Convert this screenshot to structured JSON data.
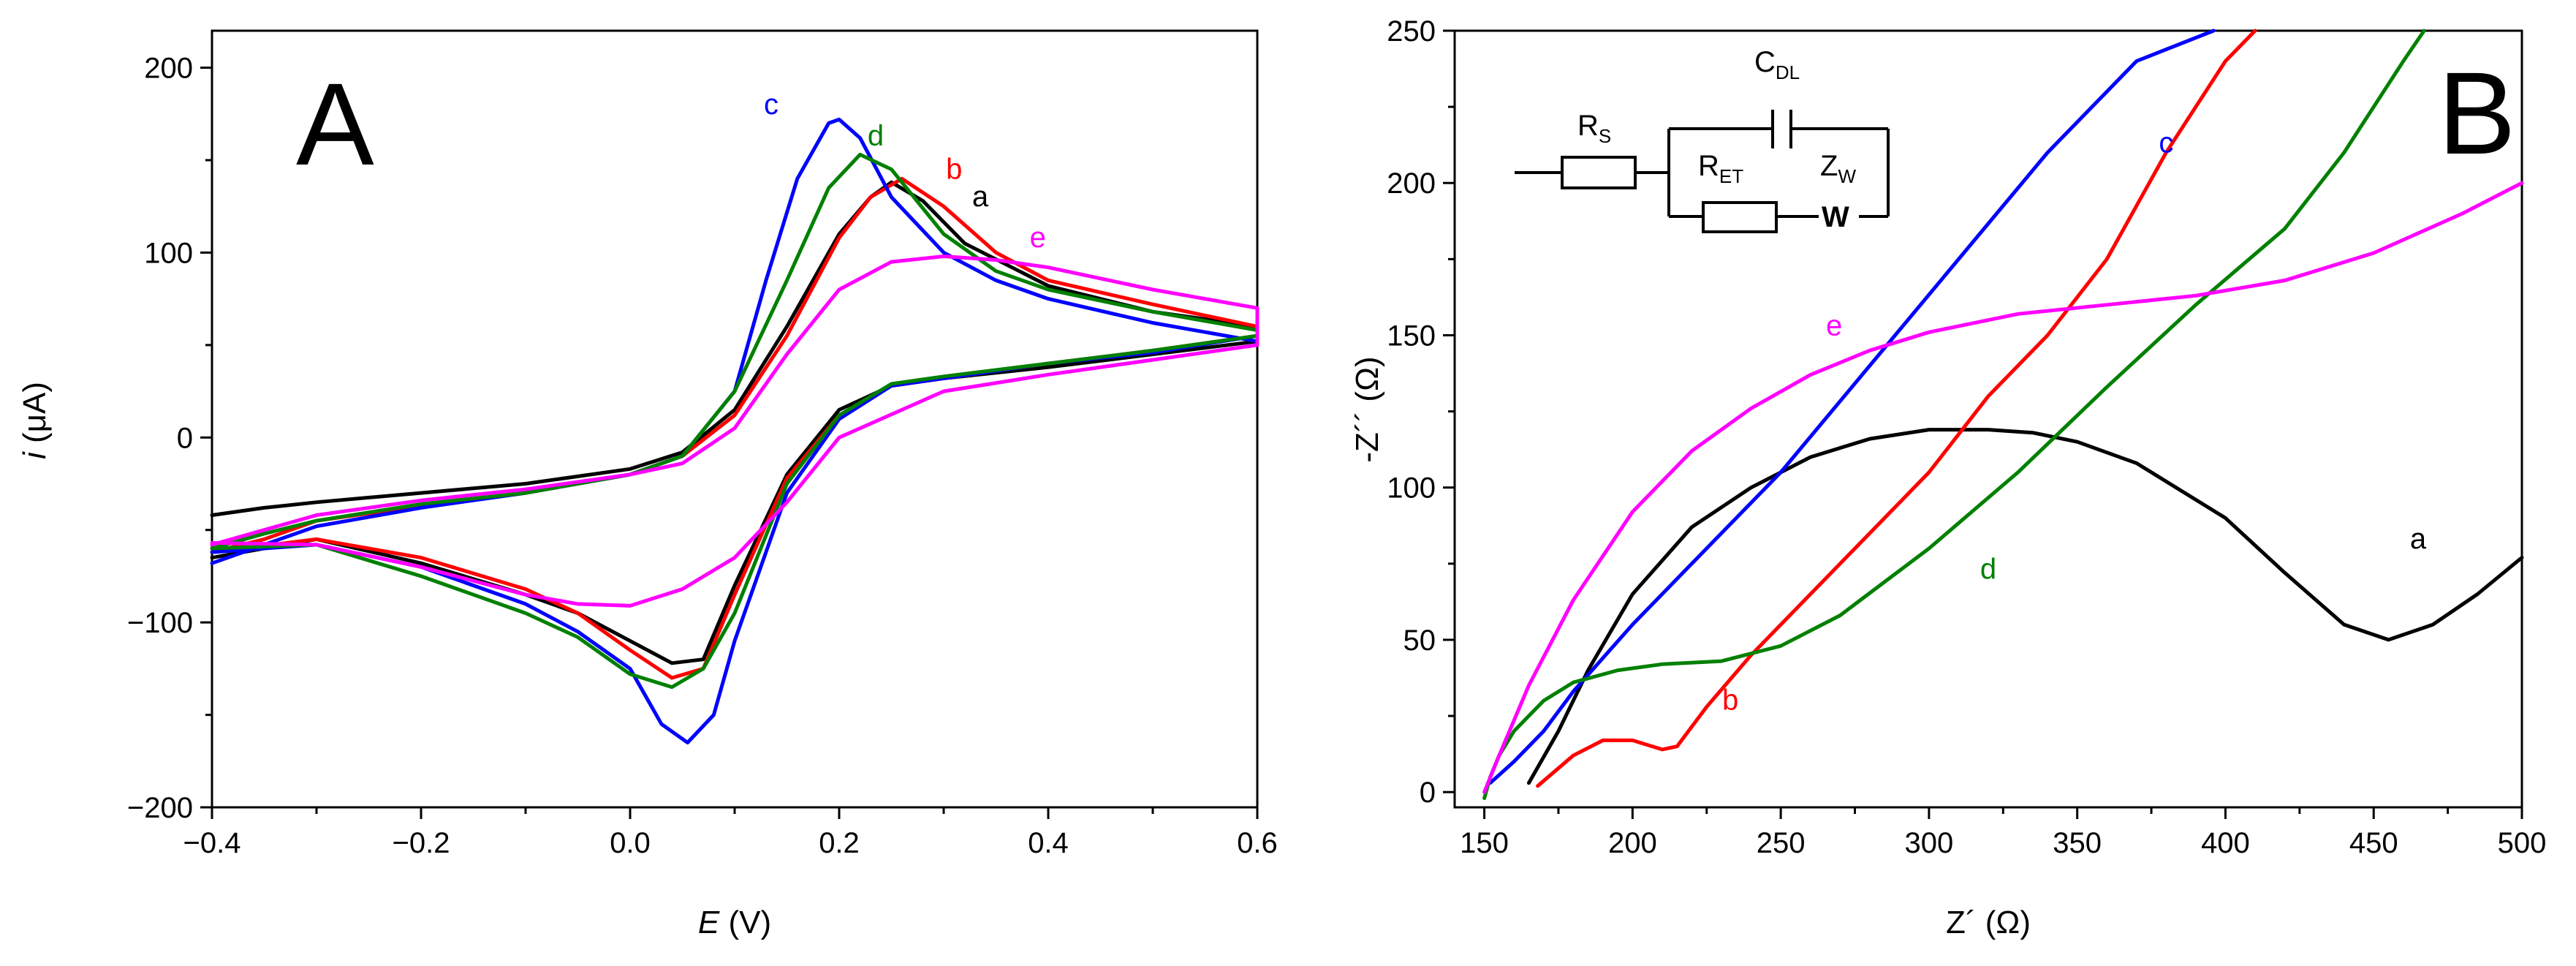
{
  "chart_data": [
    {
      "type": "line",
      "panel": "A",
      "title": "",
      "xlabel_italic": "E",
      "xlabel_unit": " (V)",
      "ylabel_italic": "i",
      "ylabel_unit": " (μA)",
      "xlim": [
        -0.4,
        0.6
      ],
      "ylim": [
        -200,
        220
      ],
      "xticks": [
        -0.4,
        -0.2,
        0.0,
        0.2,
        0.4,
        0.6
      ],
      "xtick_labels": [
        "-0.4",
        "-0.2",
        "0.0",
        "0.2",
        "0.4",
        "0.6"
      ],
      "yticks": [
        -200,
        -100,
        0,
        100,
        200
      ],
      "ytick_labels": [
        "-200",
        "-100",
        "0",
        "100",
        "200"
      ],
      "series": [
        {
          "name": "a",
          "color": "#000000",
          "label_pos": [
            0.335,
            125
          ],
          "x": [
            -0.4,
            -0.35,
            -0.3,
            -0.2,
            -0.1,
            0.0,
            0.05,
            0.1,
            0.15,
            0.2,
            0.23,
            0.25,
            0.28,
            0.32,
            0.4,
            0.5,
            0.6,
            0.6,
            0.5,
            0.4,
            0.3,
            0.25,
            0.2,
            0.15,
            0.1,
            0.07,
            0.04,
            0.0,
            -0.05,
            -0.1,
            -0.2,
            -0.3,
            -0.4
          ],
          "y": [
            -42,
            -38,
            -35,
            -30,
            -25,
            -17,
            -8,
            15,
            60,
            110,
            130,
            138,
            128,
            105,
            82,
            68,
            60,
            52,
            45,
            38,
            32,
            28,
            15,
            -20,
            -80,
            -120,
            -122,
            -110,
            -95,
            -85,
            -68,
            -55,
            -65
          ]
        },
        {
          "name": "b",
          "color": "#ff0000",
          "label_pos": [
            0.31,
            140
          ],
          "x": [
            -0.4,
            -0.35,
            -0.3,
            -0.2,
            -0.1,
            0.0,
            0.05,
            0.1,
            0.15,
            0.2,
            0.23,
            0.26,
            0.3,
            0.35,
            0.4,
            0.5,
            0.6,
            0.6,
            0.5,
            0.4,
            0.3,
            0.25,
            0.2,
            0.15,
            0.1,
            0.07,
            0.04,
            0.0,
            -0.05,
            -0.1,
            -0.2,
            -0.3,
            -0.4
          ],
          "y": [
            -62,
            -55,
            -45,
            -37,
            -30,
            -20,
            -10,
            12,
            55,
            108,
            130,
            140,
            125,
            100,
            85,
            72,
            60,
            55,
            47,
            40,
            32,
            28,
            12,
            -22,
            -85,
            -125,
            -130,
            -115,
            -95,
            -82,
            -65,
            -55,
            -62
          ]
        },
        {
          "name": "c",
          "color": "#0000ff",
          "label_pos": [
            0.135,
            175
          ],
          "x": [
            -0.4,
            -0.35,
            -0.3,
            -0.2,
            -0.1,
            0.0,
            0.05,
            0.1,
            0.13,
            0.16,
            0.19,
            0.2,
            0.22,
            0.25,
            0.3,
            0.35,
            0.4,
            0.5,
            0.6,
            0.6,
            0.5,
            0.4,
            0.3,
            0.25,
            0.2,
            0.15,
            0.1,
            0.08,
            0.055,
            0.03,
            0.0,
            -0.05,
            -0.1,
            -0.2,
            -0.3,
            -0.4
          ],
          "y": [
            -68,
            -58,
            -48,
            -38,
            -30,
            -20,
            -10,
            25,
            85,
            140,
            170,
            172,
            162,
            130,
            100,
            85,
            75,
            62,
            52,
            55,
            46,
            40,
            32,
            28,
            10,
            -30,
            -110,
            -150,
            -165,
            -155,
            -125,
            -105,
            -90,
            -70,
            -58,
            -62
          ]
        },
        {
          "name": "d",
          "color": "#008000",
          "label_pos": [
            0.235,
            158
          ],
          "x": [
            -0.4,
            -0.35,
            -0.3,
            -0.2,
            -0.1,
            0.0,
            0.05,
            0.1,
            0.15,
            0.19,
            0.22,
            0.25,
            0.3,
            0.35,
            0.4,
            0.5,
            0.6,
            0.6,
            0.5,
            0.4,
            0.3,
            0.25,
            0.2,
            0.15,
            0.1,
            0.07,
            0.04,
            0.0,
            -0.05,
            -0.1,
            -0.2,
            -0.3,
            -0.4
          ],
          "y": [
            -60,
            -52,
            -45,
            -36,
            -30,
            -20,
            -10,
            25,
            85,
            135,
            153,
            145,
            110,
            90,
            80,
            68,
            58,
            55,
            47,
            40,
            33,
            29,
            12,
            -25,
            -95,
            -125,
            -135,
            -128,
            -108,
            -95,
            -75,
            -58,
            -60
          ]
        },
        {
          "name": "e",
          "color": "#ff00ff",
          "label_pos": [
            0.39,
            103
          ],
          "x": [
            -0.4,
            -0.35,
            -0.3,
            -0.2,
            -0.1,
            0.0,
            0.05,
            0.1,
            0.15,
            0.2,
            0.25,
            0.3,
            0.35,
            0.4,
            0.5,
            0.6,
            0.6,
            0.5,
            0.4,
            0.3,
            0.2,
            0.15,
            0.1,
            0.05,
            0.0,
            -0.05,
            -0.1,
            -0.2,
            -0.3,
            -0.4
          ],
          "y": [
            -58,
            -50,
            -42,
            -34,
            -28,
            -20,
            -14,
            5,
            45,
            80,
            95,
            98,
            96,
            92,
            80,
            70,
            50,
            42,
            34,
            25,
            0,
            -35,
            -65,
            -82,
            -91,
            -90,
            -85,
            -70,
            -58,
            -57
          ]
        }
      ]
    },
    {
      "type": "line",
      "panel": "B",
      "title": "",
      "xlabel_text": "Z´ (Ω)",
      "ylabel_text": "-Z´´ (Ω)",
      "xlim": [
        140,
        500
      ],
      "ylim": [
        -5,
        250
      ],
      "xticks": [
        150,
        200,
        250,
        300,
        350,
        400,
        450,
        500
      ],
      "xtick_labels": [
        "150",
        "200",
        "250",
        "300",
        "350",
        "400",
        "450",
        "500"
      ],
      "yticks": [
        0,
        50,
        100,
        150,
        200,
        250
      ],
      "ytick_labels": [
        "0",
        "50",
        "100",
        "150",
        "200",
        "250"
      ],
      "series": [
        {
          "name": "a",
          "color": "#000000",
          "label_pos": [
            465,
            80
          ],
          "x": [
            165,
            175,
            185,
            200,
            220,
            240,
            260,
            280,
            300,
            320,
            335,
            350,
            370,
            400,
            420,
            440,
            455,
            470,
            485,
            500
          ],
          "y": [
            3,
            20,
            40,
            65,
            87,
            100,
            110,
            116,
            119,
            119,
            118,
            115,
            108,
            90,
            72,
            55,
            50,
            55,
            65,
            77
          ]
        },
        {
          "name": "b",
          "color": "#ff0000",
          "label_pos": [
            233,
            27
          ],
          "x": [
            168,
            180,
            190,
            200,
            210,
            215,
            225,
            240,
            260,
            280,
            300,
            320,
            340,
            360,
            380,
            400,
            410
          ],
          "y": [
            2,
            12,
            17,
            17,
            14,
            15,
            28,
            45,
            65,
            85,
            105,
            130,
            150,
            175,
            210,
            240,
            250
          ]
        },
        {
          "name": "c",
          "color": "#0000ff",
          "label_pos": [
            380,
            210
          ],
          "x": [
            152,
            160,
            170,
            180,
            200,
            220,
            250,
            280,
            310,
            340,
            370,
            396
          ],
          "y": [
            3,
            10,
            20,
            33,
            55,
            75,
            105,
            140,
            175,
            210,
            240,
            250
          ]
        },
        {
          "name": "d",
          "color": "#008000",
          "label_pos": [
            320,
            70
          ],
          "x": [
            150,
            152,
            155,
            160,
            170,
            180,
            195,
            210,
            230,
            250,
            270,
            300,
            330,
            360,
            390,
            420,
            440,
            460,
            467
          ],
          "y": [
            -2,
            5,
            12,
            20,
            30,
            36,
            40,
            42,
            43,
            48,
            58,
            80,
            105,
            133,
            160,
            185,
            210,
            240,
            250
          ]
        },
        {
          "name": "e",
          "color": "#ff00ff",
          "label_pos": [
            268,
            150
          ],
          "x": [
            150,
            155,
            165,
            180,
            200,
            220,
            240,
            260,
            280,
            300,
            330,
            360,
            390,
            420,
            450,
            480,
            500
          ],
          "y": [
            0,
            12,
            35,
            63,
            92,
            112,
            126,
            137,
            145,
            151,
            157,
            160,
            163,
            168,
            177,
            190,
            200
          ]
        }
      ]
    }
  ],
  "panel_a_letter": "A",
  "panel_b_letter": "B",
  "circuit": {
    "rs_main": "R",
    "rs_sub": "S",
    "cdl_main": "C",
    "cdl_sub": "DL",
    "ret_main": "R",
    "ret_sub": "ET",
    "zw_main": "Z",
    "zw_sub": "W",
    "warburg_symbol": "W"
  }
}
